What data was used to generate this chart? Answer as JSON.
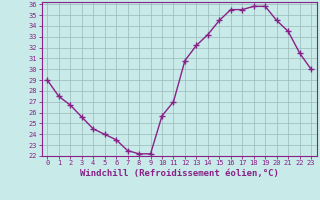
{
  "x": [
    0,
    1,
    2,
    3,
    4,
    5,
    6,
    7,
    8,
    9,
    10,
    11,
    12,
    13,
    14,
    15,
    16,
    17,
    18,
    19,
    20,
    21,
    22,
    23
  ],
  "y": [
    29.0,
    27.5,
    26.7,
    25.6,
    24.5,
    24.0,
    23.5,
    22.5,
    22.2,
    22.2,
    25.7,
    27.0,
    30.8,
    32.2,
    33.2,
    34.5,
    35.5,
    35.5,
    35.8,
    35.8,
    34.5,
    33.5,
    31.5,
    30.0
  ],
  "line_color": "#882288",
  "marker": "+",
  "marker_size": 4,
  "bg_color": "#C8EAE8",
  "grid_color": "#9BBABA",
  "xlabel": "Windchill (Refroidissement éolien,°C)",
  "ylim": [
    22,
    36
  ],
  "xlim": [
    -0.5,
    23.5
  ],
  "yticks": [
    22,
    23,
    24,
    25,
    26,
    27,
    28,
    29,
    30,
    31,
    32,
    33,
    34,
    35,
    36
  ],
  "xticks": [
    0,
    1,
    2,
    3,
    4,
    5,
    6,
    7,
    8,
    9,
    10,
    11,
    12,
    13,
    14,
    15,
    16,
    17,
    18,
    19,
    20,
    21,
    22,
    23
  ],
  "tick_color": "#882288",
  "label_color": "#882288",
  "label_fontsize": 6.5,
  "tick_fontsize": 5.0,
  "linewidth": 1.0
}
